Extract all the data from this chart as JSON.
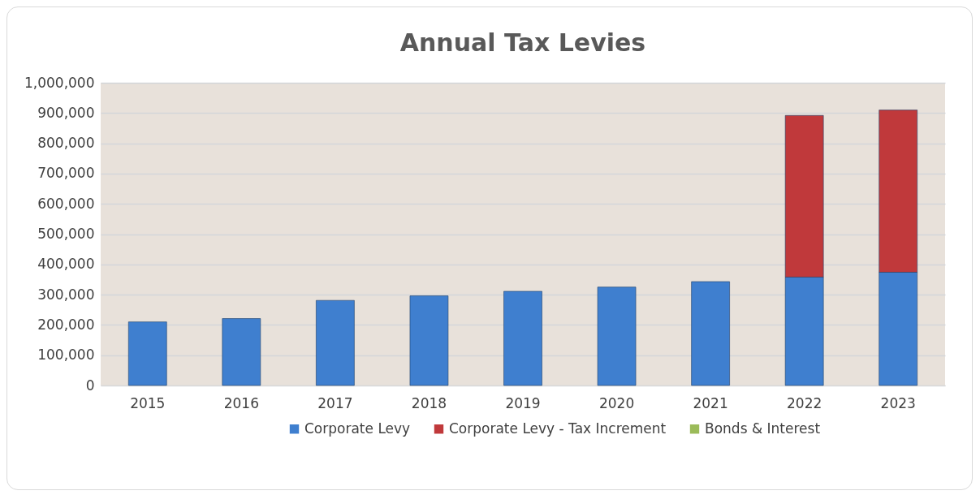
{
  "chart_data": {
    "type": "bar",
    "title": "Annual Tax Levies",
    "categories": [
      "2015",
      "2016",
      "2017",
      "2018",
      "2019",
      "2020",
      "2021",
      "2022",
      "2023"
    ],
    "series": [
      {
        "name": "Corporate Levy",
        "color": "#3f7fcf",
        "values": [
          210000,
          221000,
          281000,
          296000,
          311000,
          325000,
          343000,
          358000,
          374000
        ]
      },
      {
        "name": "Corporate Levy - Tax Increment",
        "color": "#c0393b",
        "values": [
          null,
          null,
          null,
          null,
          null,
          null,
          null,
          534000,
          536000
        ]
      },
      {
        "name": "Bonds & Interest",
        "color": "#9bbb59",
        "values": [
          null,
          null,
          null,
          null,
          null,
          null,
          null,
          null,
          null
        ]
      }
    ],
    "stacked": true,
    "ylim": [
      0,
      1000000
    ],
    "yticks": [
      0,
      {
        "value": 100000,
        "label": "100,000"
      },
      {
        "value": 200000,
        "label": "200,000"
      },
      {
        "value": 300000,
        "label": "300,000"
      },
      {
        "value": 400000,
        "label": "400,000"
      },
      {
        "value": 500000,
        "label": "500,000"
      },
      {
        "value": 600000,
        "label": "600,000"
      },
      {
        "value": 700000,
        "label": "700,000"
      },
      {
        "value": 800000,
        "label": "800,000"
      },
      {
        "value": 900000,
        "label": "900,000"
      },
      {
        "value": 1000000,
        "label": "1,000,000"
      }
    ],
    "grid": "y",
    "legend": "bottom"
  }
}
